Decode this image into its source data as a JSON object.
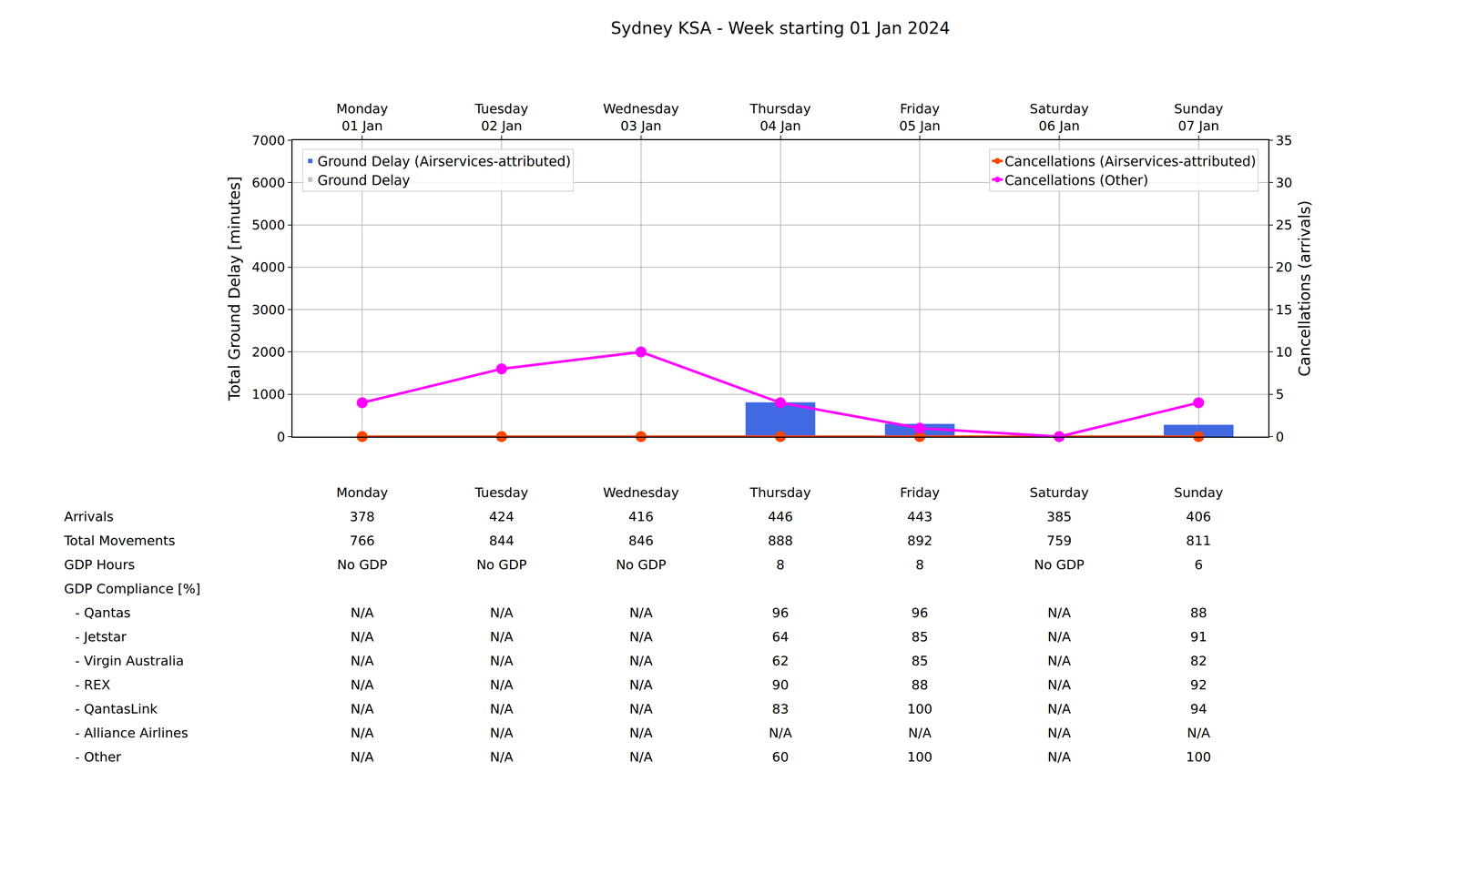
{
  "chart_data": {
    "type": "bar",
    "title": "Sydney KSA - Week starting 01 Jan 2024",
    "categories": [
      "Monday\n01 Jan",
      "Tuesday\n02 Jan",
      "Wednesday\n03 Jan",
      "Thursday\n04 Jan",
      "Friday\n05 Jan",
      "Saturday\n06 Jan",
      "Sunday\n07 Jan"
    ],
    "y_label": "Total Ground Delay [minutes]",
    "y2_label": "Cancellations (arrivals)",
    "ylim": [
      0,
      7000
    ],
    "yticks": [
      0,
      1000,
      2000,
      3000,
      4000,
      5000,
      6000,
      7000
    ],
    "y2lim": [
      0,
      35
    ],
    "y2ticks": [
      0,
      5,
      10,
      15,
      20,
      25,
      30,
      35
    ],
    "grid": true,
    "legend": "upper left",
    "series": [
      {
        "name": "Ground Delay (Airservices-attributed)",
        "type": "bar",
        "color": "#4169e1",
        "values": [
          0,
          0,
          0,
          810,
          300,
          0,
          280
        ]
      },
      {
        "name": "Ground Delay",
        "type": "bar",
        "color": "#c0c0c0",
        "values": [
          0,
          0,
          0,
          0,
          0,
          0,
          0
        ]
      },
      {
        "name": "Cancellations (Airservices-attributed)",
        "type": "line",
        "color": "#ff4500",
        "marker": "circle",
        "axis": "y2",
        "values": [
          0,
          0,
          0,
          0,
          0,
          0,
          0
        ]
      },
      {
        "name": "Cancellations (Other)",
        "type": "line",
        "color": "#ff00ff",
        "marker": "circle",
        "axis": "y2",
        "values": [
          4,
          8,
          10,
          4,
          1,
          0,
          4
        ]
      }
    ]
  },
  "table": {
    "columns": [
      "Monday",
      "Tuesday",
      "Wednesday",
      "Thursday",
      "Friday",
      "Saturday",
      "Sunday"
    ],
    "rows": [
      {
        "label": "Arrivals",
        "cells": [
          378,
          424,
          416,
          446,
          443,
          385,
          406
        ]
      },
      {
        "label": "Total Movements",
        "cells": [
          766,
          844,
          846,
          888,
          892,
          759,
          811
        ]
      },
      {
        "label": "GDP Hours",
        "cells": [
          "No GDP",
          "No GDP",
          "No GDP",
          8,
          8,
          "No GDP",
          6
        ]
      },
      {
        "label": "GDP Compliance [%]",
        "rows": [
          {
            "label": "- Qantas",
            "cells": [
              "N/A",
              "N/A",
              "N/A",
              96,
              96,
              "N/A",
              88
            ]
          },
          {
            "label": "- Jetstar",
            "cells": [
              "N/A",
              "N/A",
              "N/A",
              64,
              85,
              "N/A",
              91
            ]
          },
          {
            "label": "- Virgin Australia",
            "cells": [
              "N/A",
              "N/A",
              "N/A",
              62,
              85,
              "N/A",
              82
            ]
          },
          {
            "label": "- REX",
            "cells": [
              "N/A",
              "N/A",
              "N/A",
              90,
              88,
              "N/A",
              92
            ]
          },
          {
            "label": "- QantasLink",
            "cells": [
              "N/A",
              "N/A",
              "N/A",
              83,
              100,
              "N/A",
              94
            ]
          },
          {
            "label": "- Alliance Airlines",
            "cells": [
              "N/A",
              "N/A",
              "N/A",
              "N/A",
              "N/A",
              "N/A",
              "N/A"
            ]
          },
          {
            "label": "- Other",
            "cells": [
              "N/A",
              "N/A",
              "N/A",
              60,
              100,
              "N/A",
              100
            ]
          }
        ]
      }
    ]
  }
}
